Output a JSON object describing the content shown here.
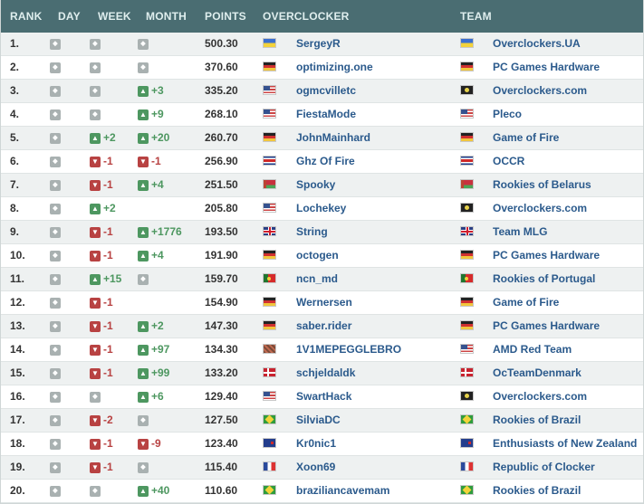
{
  "header": {
    "rank": "RANK",
    "day": "DAY",
    "week": "WEEK",
    "month": "MONTH",
    "points": "POINTS",
    "overclocker": "OVERCLOCKER",
    "team": "TEAM"
  },
  "colors": {
    "header_bg": "#4a6d72",
    "up": "#4d9760",
    "down": "#b84242",
    "same": "#a9b1b1",
    "link": "#2b5a8c"
  },
  "rows": [
    {
      "rank": "1.",
      "day": {
        "dir": "same",
        "text": ""
      },
      "week": {
        "dir": "same",
        "text": ""
      },
      "month": {
        "dir": "same",
        "text": ""
      },
      "points": "500.30",
      "oc_flag": "UA",
      "overclocker": "SergeyR",
      "team_flag": "UA",
      "team": "Overclockers.UA"
    },
    {
      "rank": "2.",
      "day": {
        "dir": "same",
        "text": ""
      },
      "week": {
        "dir": "same",
        "text": ""
      },
      "month": {
        "dir": "same",
        "text": ""
      },
      "points": "370.60",
      "oc_flag": "DE",
      "overclocker": "optimizing.one",
      "team_flag": "DE",
      "team": "PC Games Hardware"
    },
    {
      "rank": "3.",
      "day": {
        "dir": "same",
        "text": ""
      },
      "week": {
        "dir": "same",
        "text": ""
      },
      "month": {
        "dir": "up",
        "text": "+3"
      },
      "points": "335.20",
      "oc_flag": "US",
      "overclocker": "ogmcvilletc",
      "team_flag": "PIR",
      "team": "Overclockers.com"
    },
    {
      "rank": "4.",
      "day": {
        "dir": "same",
        "text": ""
      },
      "week": {
        "dir": "same",
        "text": ""
      },
      "month": {
        "dir": "up",
        "text": "+9"
      },
      "points": "268.10",
      "oc_flag": "US",
      "overclocker": "FiestaMode",
      "team_flag": "US",
      "team": "Pleco"
    },
    {
      "rank": "5.",
      "day": {
        "dir": "same",
        "text": ""
      },
      "week": {
        "dir": "up",
        "text": "+2"
      },
      "month": {
        "dir": "up",
        "text": "+20"
      },
      "points": "260.70",
      "oc_flag": "DE",
      "overclocker": "JohnMainhard",
      "team_flag": "DE",
      "team": "Game of Fire"
    },
    {
      "rank": "6.",
      "day": {
        "dir": "same",
        "text": ""
      },
      "week": {
        "dir": "down",
        "text": "-1"
      },
      "month": {
        "dir": "down",
        "text": "-1"
      },
      "points": "256.90",
      "oc_flag": "CRX",
      "overclocker": "Ghz Of Fire",
      "team_flag": "CR",
      "team": "OCCR"
    },
    {
      "rank": "7.",
      "day": {
        "dir": "same",
        "text": ""
      },
      "week": {
        "dir": "down",
        "text": "-1"
      },
      "month": {
        "dir": "up",
        "text": "+4"
      },
      "points": "251.50",
      "oc_flag": "BY",
      "overclocker": "Spooky",
      "team_flag": "BY",
      "team": "Rookies of Belarus"
    },
    {
      "rank": "8.",
      "day": {
        "dir": "same",
        "text": ""
      },
      "week": {
        "dir": "up",
        "text": "+2"
      },
      "month": {
        "dir": "none",
        "text": ""
      },
      "points": "205.80",
      "oc_flag": "US",
      "overclocker": "Lochekey",
      "team_flag": "PIR",
      "team": "Overclockers.com"
    },
    {
      "rank": "9.",
      "day": {
        "dir": "same",
        "text": ""
      },
      "week": {
        "dir": "down",
        "text": "-1"
      },
      "month": {
        "dir": "up",
        "text": "+1776"
      },
      "points": "193.50",
      "oc_flag": "GB",
      "overclocker": "String",
      "team_flag": "GB",
      "team": "Team MLG"
    },
    {
      "rank": "10.",
      "day": {
        "dir": "same",
        "text": ""
      },
      "week": {
        "dir": "down",
        "text": "-1"
      },
      "month": {
        "dir": "up",
        "text": "+4"
      },
      "points": "191.90",
      "oc_flag": "DE",
      "overclocker": "octogen",
      "team_flag": "DE",
      "team": "PC Games Hardware"
    },
    {
      "rank": "11.",
      "day": {
        "dir": "same",
        "text": ""
      },
      "week": {
        "dir": "up",
        "text": "+15"
      },
      "month": {
        "dir": "same",
        "text": ""
      },
      "points": "159.70",
      "oc_flag": "PT",
      "overclocker": "ncn_md",
      "team_flag": "PT",
      "team": "Rookies of Portugal"
    },
    {
      "rank": "12.",
      "day": {
        "dir": "same",
        "text": ""
      },
      "week": {
        "dir": "down",
        "text": "-1"
      },
      "month": {
        "dir": "none",
        "text": ""
      },
      "points": "154.90",
      "oc_flag": "DE",
      "overclocker": "Wernersen",
      "team_flag": "DE",
      "team": "Game of Fire"
    },
    {
      "rank": "13.",
      "day": {
        "dir": "same",
        "text": ""
      },
      "week": {
        "dir": "down",
        "text": "-1"
      },
      "month": {
        "dir": "up",
        "text": "+2"
      },
      "points": "147.30",
      "oc_flag": "DE",
      "overclocker": "saber.rider",
      "team_flag": "DE",
      "team": "PC Games Hardware"
    },
    {
      "rank": "14.",
      "day": {
        "dir": "same",
        "text": ""
      },
      "week": {
        "dir": "down",
        "text": "-1"
      },
      "month": {
        "dir": "up",
        "text": "+97"
      },
      "points": "134.30",
      "oc_flag": "MIX",
      "overclocker": "1V1MEPEGGLEBRO",
      "team_flag": "US",
      "team": "AMD Red Team"
    },
    {
      "rank": "15.",
      "day": {
        "dir": "same",
        "text": ""
      },
      "week": {
        "dir": "down",
        "text": "-1"
      },
      "month": {
        "dir": "up",
        "text": "+99"
      },
      "points": "133.20",
      "oc_flag": "DK",
      "overclocker": "schjeldaldk",
      "team_flag": "DK",
      "team": "OcTeamDenmark"
    },
    {
      "rank": "16.",
      "day": {
        "dir": "same",
        "text": ""
      },
      "week": {
        "dir": "same",
        "text": ""
      },
      "month": {
        "dir": "up",
        "text": "+6"
      },
      "points": "129.40",
      "oc_flag": "US",
      "overclocker": "SwartHack",
      "team_flag": "PIR",
      "team": "Overclockers.com"
    },
    {
      "rank": "17.",
      "day": {
        "dir": "same",
        "text": ""
      },
      "week": {
        "dir": "down",
        "text": "-2"
      },
      "month": {
        "dir": "same",
        "text": ""
      },
      "points": "127.50",
      "oc_flag": "BR",
      "overclocker": "SilviaDC",
      "team_flag": "BR",
      "team": "Rookies of Brazil"
    },
    {
      "rank": "18.",
      "day": {
        "dir": "same",
        "text": ""
      },
      "week": {
        "dir": "down",
        "text": "-1"
      },
      "month": {
        "dir": "down",
        "text": "-9"
      },
      "points": "123.40",
      "oc_flag": "NZ",
      "overclocker": "Kr0nic1",
      "team_flag": "NZ",
      "team": "Enthusiasts of New Zealand"
    },
    {
      "rank": "19.",
      "day": {
        "dir": "same",
        "text": ""
      },
      "week": {
        "dir": "down",
        "text": "-1"
      },
      "month": {
        "dir": "same",
        "text": ""
      },
      "points": "115.40",
      "oc_flag": "FR",
      "overclocker": "Xoon69",
      "team_flag": "FR",
      "team": "Republic of Clocker"
    },
    {
      "rank": "20.",
      "day": {
        "dir": "same",
        "text": ""
      },
      "week": {
        "dir": "same",
        "text": ""
      },
      "month": {
        "dir": "up",
        "text": "+40"
      },
      "points": "110.60",
      "oc_flag": "BR",
      "overclocker": "braziliancavemam",
      "team_flag": "BR",
      "team": "Rookies of Brazil"
    }
  ]
}
